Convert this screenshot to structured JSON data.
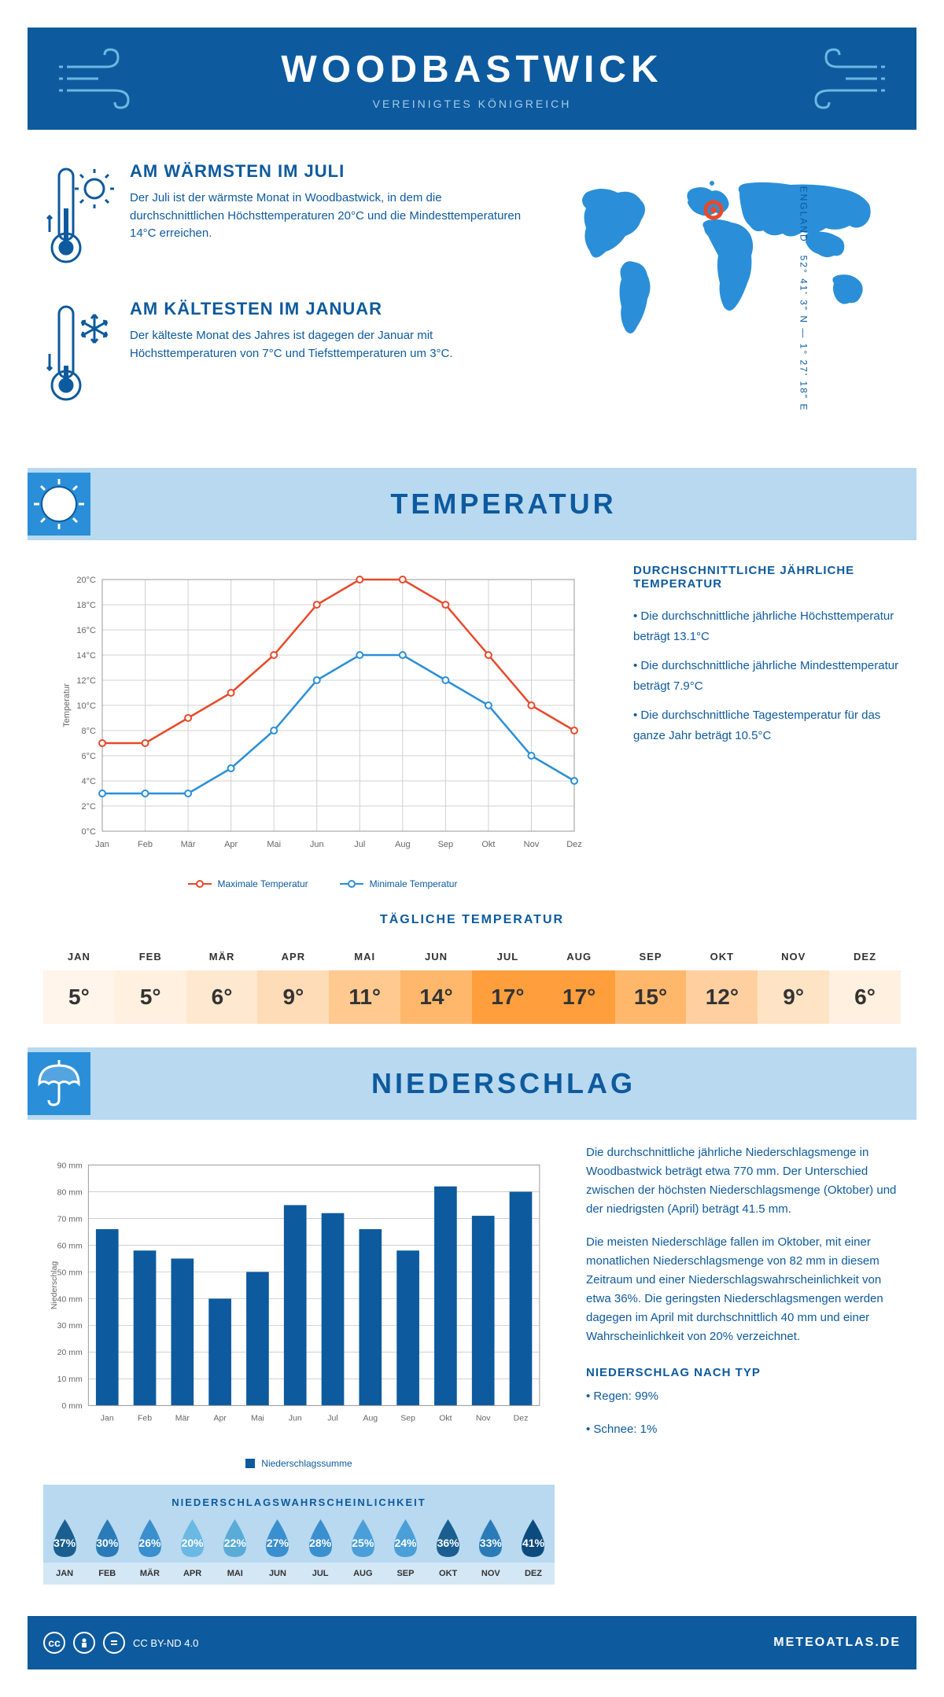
{
  "header": {
    "title": "WOODBASTWICK",
    "subtitle": "VEREINIGTES KÖNIGREICH"
  },
  "coords": {
    "text": "52° 41' 3\" N — 1° 27' 18\" E",
    "region": "ENGLAND"
  },
  "facts": {
    "warm": {
      "title": "AM WÄRMSTEN IM JULI",
      "text": "Der Juli ist der wärmste Monat in Woodbastwick, in dem die durchschnittlichen Höchsttemperaturen 20°C und die Mindesttemperaturen 14°C erreichen."
    },
    "cold": {
      "title": "AM KÄLTESTEN IM JANUAR",
      "text": "Der kälteste Monat des Jahres ist dagegen der Januar mit Höchsttemperaturen von 7°C und Tiefsttemperaturen um 3°C."
    }
  },
  "sections": {
    "temp": "TEMPERATUR",
    "precip": "NIEDERSCHLAG"
  },
  "tempChart": {
    "type": "line",
    "months": [
      "Jan",
      "Feb",
      "Mär",
      "Apr",
      "Mai",
      "Jun",
      "Jul",
      "Aug",
      "Sep",
      "Okt",
      "Nov",
      "Dez"
    ],
    "max": {
      "label": "Maximale Temperatur",
      "values": [
        7,
        7,
        9,
        11,
        14,
        18,
        20,
        20,
        18,
        14,
        10,
        8
      ],
      "color": "#e8492a"
    },
    "min": {
      "label": "Minimale Temperatur",
      "values": [
        3,
        3,
        3,
        5,
        8,
        12,
        14,
        14,
        12,
        10,
        6,
        4
      ],
      "color": "#2a8fd8"
    },
    "ylabel": "Temperatur",
    "ymin": 0,
    "ymax": 20,
    "ystep": 2,
    "grid_color": "#d0d0d0",
    "bg": "#fff"
  },
  "tempInfo": {
    "title": "DURCHSCHNITTLICHE JÄHRLICHE TEMPERATUR",
    "lines": [
      "• Die durchschnittliche jährliche Höchsttemperatur beträgt 13.1°C",
      "• Die durchschnittliche jährliche Mindesttemperatur beträgt 7.9°C",
      "• Die durchschnittliche Tagestemperatur für das ganze Jahr beträgt 10.5°C"
    ]
  },
  "dailyTemp": {
    "title": "TÄGLICHE TEMPERATUR",
    "months": [
      "JAN",
      "FEB",
      "MÄR",
      "APR",
      "MAI",
      "JUN",
      "JUL",
      "AUG",
      "SEP",
      "OKT",
      "NOV",
      "DEZ"
    ],
    "values": [
      "5°",
      "5°",
      "6°",
      "9°",
      "11°",
      "14°",
      "17°",
      "17°",
      "15°",
      "12°",
      "9°",
      "6°"
    ],
    "colors": [
      "#fff5eb",
      "#fff0e0",
      "#ffe8d0",
      "#ffdcb8",
      "#ffc98f",
      "#ffb86b",
      "#ff9e3d",
      "#ff9e3d",
      "#ffb86b",
      "#ffcf9f",
      "#ffe3c5",
      "#fff0e0"
    ]
  },
  "precipChart": {
    "type": "bar",
    "months": [
      "Jan",
      "Feb",
      "Mär",
      "Apr",
      "Mai",
      "Jun",
      "Jul",
      "Aug",
      "Sep",
      "Okt",
      "Nov",
      "Dez"
    ],
    "values": [
      66,
      58,
      55,
      40,
      50,
      75,
      72,
      66,
      58,
      82,
      71,
      80
    ],
    "color": "#0d5a9e",
    "ylabel": "Niederschlag",
    "legend": "Niederschlagssumme",
    "ymin": 0,
    "ymax": 90,
    "ystep": 10,
    "grid_color": "#d0d0d0"
  },
  "precipText": {
    "p1": "Die durchschnittliche jährliche Niederschlagsmenge in Woodbastwick beträgt etwa 770 mm. Der Unterschied zwischen der höchsten Niederschlagsmenge (Oktober) und der niedrigsten (April) beträgt 41.5 mm.",
    "p2": "Die meisten Niederschläge fallen im Oktober, mit einer monatlichen Niederschlagsmenge von 82 mm in diesem Zeitraum und einer Niederschlagswahrscheinlichkeit von etwa 36%. Die geringsten Niederschlagsmengen werden dagegen im April mit durchschnittlich 40 mm und einer Wahrscheinlichkeit von 20% verzeichnet.",
    "typeTitle": "NIEDERSCHLAG NACH TYP",
    "types": [
      "• Regen: 99%",
      "• Schnee: 1%"
    ]
  },
  "prob": {
    "title": "NIEDERSCHLAGSWAHRSCHEINLICHKEIT",
    "months": [
      "JAN",
      "FEB",
      "MÄR",
      "APR",
      "MAI",
      "JUN",
      "JUL",
      "AUG",
      "SEP",
      "OKT",
      "NOV",
      "DEZ"
    ],
    "values": [
      "37%",
      "30%",
      "26%",
      "20%",
      "22%",
      "27%",
      "28%",
      "25%",
      "24%",
      "36%",
      "33%",
      "41%"
    ],
    "colors": [
      "#1a5f8f",
      "#2a7bb8",
      "#3a8fcf",
      "#6bb8e3",
      "#5aabd8",
      "#3a8fcf",
      "#3a8fcf",
      "#4a9fd8",
      "#4a9fd8",
      "#1a5f8f",
      "#2a7bb8",
      "#0d4a7e"
    ]
  },
  "footer": {
    "license": "CC BY-ND 4.0",
    "brand": "METEOATLAS.DE"
  }
}
